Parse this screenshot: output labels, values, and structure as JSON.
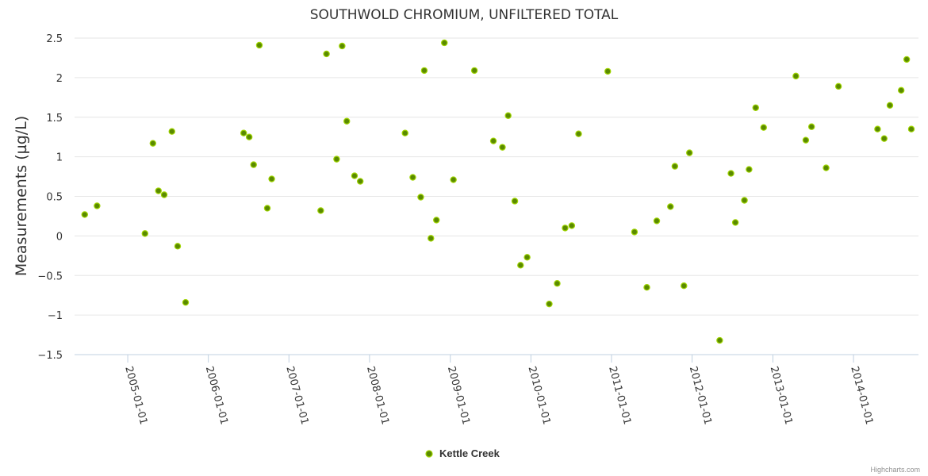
{
  "chart_data": {
    "type": "scatter",
    "title": "SOUTHWOLD CHROMIUM, UNFILTERED TOTAL",
    "xlabel": "",
    "ylabel": "Measurements (µg/L)",
    "ylim": [
      -1.5,
      2.5
    ],
    "yticks": [
      "2.5",
      "2",
      "1.5",
      "1",
      "0.5",
      "0",
      "−0.5",
      "−1",
      "−1.5"
    ],
    "ytick_values": [
      2.5,
      2,
      1.5,
      1,
      0.5,
      0,
      -0.5,
      -1,
      -1.5
    ],
    "xlim": [
      "2004-06-10",
      "2014-09-20"
    ],
    "xticks": [
      "2005-01-01",
      "2006-01-01",
      "2007-01-01",
      "2008-01-01",
      "2009-01-01",
      "2010-01-01",
      "2011-01-01",
      "2012-01-01",
      "2013-01-01",
      "2014-01-01"
    ],
    "legend": "bottom-center",
    "grid": true,
    "credits": "Highcharts.com",
    "series": [
      {
        "name": "Kettle Creek",
        "color": "#5a8a00",
        "points": [
          {
            "x": "2004-06-20",
            "y": 0.27
          },
          {
            "x": "2004-08-15",
            "y": 0.38
          },
          {
            "x": "2005-03-20",
            "y": 0.03
          },
          {
            "x": "2005-04-25",
            "y": 1.17
          },
          {
            "x": "2005-05-20",
            "y": 0.57
          },
          {
            "x": "2005-06-15",
            "y": 0.52
          },
          {
            "x": "2005-07-20",
            "y": 1.32
          },
          {
            "x": "2005-08-15",
            "y": -0.13
          },
          {
            "x": "2005-09-20",
            "y": -0.84
          },
          {
            "x": "2006-06-10",
            "y": 1.3
          },
          {
            "x": "2006-07-05",
            "y": 1.25
          },
          {
            "x": "2006-07-25",
            "y": 0.9
          },
          {
            "x": "2006-08-20",
            "y": 2.41
          },
          {
            "x": "2006-09-25",
            "y": 0.35
          },
          {
            "x": "2006-10-15",
            "y": 0.72
          },
          {
            "x": "2007-05-25",
            "y": 0.32
          },
          {
            "x": "2007-06-20",
            "y": 2.3
          },
          {
            "x": "2007-08-05",
            "y": 0.97
          },
          {
            "x": "2007-08-30",
            "y": 2.4
          },
          {
            "x": "2007-09-20",
            "y": 1.45
          },
          {
            "x": "2007-10-25",
            "y": 0.76
          },
          {
            "x": "2007-11-20",
            "y": 0.69
          },
          {
            "x": "2008-06-10",
            "y": 1.3
          },
          {
            "x": "2008-07-15",
            "y": 0.74
          },
          {
            "x": "2008-08-20",
            "y": 0.49
          },
          {
            "x": "2008-09-05",
            "y": 2.09
          },
          {
            "x": "2008-10-05",
            "y": -0.03
          },
          {
            "x": "2008-10-30",
            "y": 0.2
          },
          {
            "x": "2008-12-05",
            "y": 2.44
          },
          {
            "x": "2009-01-15",
            "y": 0.71
          },
          {
            "x": "2009-04-20",
            "y": 2.09
          },
          {
            "x": "2009-07-15",
            "y": 1.2
          },
          {
            "x": "2009-08-25",
            "y": 1.12
          },
          {
            "x": "2009-09-20",
            "y": 1.52
          },
          {
            "x": "2009-10-20",
            "y": 0.44
          },
          {
            "x": "2009-11-15",
            "y": -0.37
          },
          {
            "x": "2009-12-15",
            "y": -0.27
          },
          {
            "x": "2010-03-25",
            "y": -0.86
          },
          {
            "x": "2010-04-30",
            "y": -0.6
          },
          {
            "x": "2010-06-05",
            "y": 0.1
          },
          {
            "x": "2010-07-05",
            "y": 0.13
          },
          {
            "x": "2010-08-05",
            "y": 1.29
          },
          {
            "x": "2010-12-15",
            "y": 2.08
          },
          {
            "x": "2011-04-15",
            "y": 0.05
          },
          {
            "x": "2011-06-10",
            "y": -0.65
          },
          {
            "x": "2011-07-25",
            "y": 0.19
          },
          {
            "x": "2011-09-25",
            "y": 0.37
          },
          {
            "x": "2011-10-15",
            "y": 0.88
          },
          {
            "x": "2011-11-25",
            "y": -0.63
          },
          {
            "x": "2011-12-20",
            "y": 1.05
          },
          {
            "x": "2012-05-05",
            "y": -1.32
          },
          {
            "x": "2012-06-25",
            "y": 0.79
          },
          {
            "x": "2012-07-15",
            "y": 0.17
          },
          {
            "x": "2012-08-25",
            "y": 0.45
          },
          {
            "x": "2012-09-15",
            "y": 0.84
          },
          {
            "x": "2012-10-15",
            "y": 1.62
          },
          {
            "x": "2012-11-20",
            "y": 1.37
          },
          {
            "x": "2013-04-15",
            "y": 2.02
          },
          {
            "x": "2013-05-30",
            "y": 1.21
          },
          {
            "x": "2013-06-25",
            "y": 1.38
          },
          {
            "x": "2013-08-30",
            "y": 0.86
          },
          {
            "x": "2013-10-25",
            "y": 1.89
          },
          {
            "x": "2014-04-20",
            "y": 1.35
          },
          {
            "x": "2014-05-20",
            "y": 1.23
          },
          {
            "x": "2014-06-15",
            "y": 1.65
          },
          {
            "x": "2014-08-05",
            "y": 1.84
          },
          {
            "x": "2014-08-30",
            "y": 2.23
          },
          {
            "x": "2014-09-20",
            "y": 1.35
          }
        ]
      }
    ]
  }
}
